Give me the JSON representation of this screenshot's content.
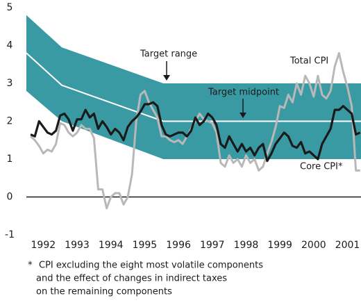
{
  "chart_data": {
    "type": "line",
    "ylim": [
      -1,
      5
    ],
    "yticks": [
      -1,
      0,
      1,
      2,
      3,
      4,
      5
    ],
    "xlim": [
      1991.5,
      2001.4
    ],
    "xticks": [
      1992,
      1993,
      1994,
      1995,
      1996,
      1997,
      1998,
      1999,
      2000,
      2001
    ],
    "grid": false,
    "zero_line": true,
    "target_range": {
      "name": "Target range",
      "color": "#3a9aa4",
      "x": [
        1991.5,
        1992.55,
        1995.55,
        2001.4
      ],
      "upper": [
        4.8,
        3.95,
        3,
        3
      ],
      "lower": [
        2.8,
        2,
        1,
        1
      ]
    },
    "target_midpoint": {
      "name": "Target midpoint",
      "color": "#ffffff",
      "values": [
        3.8,
        2.95,
        2,
        2
      ]
    },
    "x": [
      1991.625,
      1991.75,
      1991.875,
      1992,
      1992.125,
      1992.25,
      1992.375,
      1992.5,
      1992.625,
      1992.75,
      1992.875,
      1993,
      1993.125,
      1993.25,
      1993.375,
      1993.5,
      1993.625,
      1993.75,
      1993.875,
      1994,
      1994.125,
      1994.25,
      1994.375,
      1994.5,
      1994.625,
      1994.75,
      1994.875,
      1995,
      1995.125,
      1995.25,
      1995.375,
      1995.5,
      1995.625,
      1995.75,
      1995.875,
      1996,
      1996.125,
      1996.25,
      1996.375,
      1996.5,
      1996.625,
      1996.75,
      1996.875,
      1997,
      1997.125,
      1997.25,
      1997.375,
      1997.5,
      1997.625,
      1997.75,
      1997.875,
      1998,
      1998.125,
      1998.25,
      1998.375,
      1998.5,
      1998.625,
      1998.75,
      1998.875,
      1999,
      1999.125,
      1999.25,
      1999.375,
      1999.5,
      1999.625,
      1999.75,
      1999.875,
      2000,
      2000.125,
      2000.25,
      2000.375,
      2000.5,
      2000.625,
      2000.75,
      2000.875,
      2001,
      2001.125,
      2001.25,
      2001.375
    ],
    "series": [
      {
        "name": "Total CPI",
        "color": "#b8b8b8",
        "values": [
          1.6,
          1.5,
          1.35,
          1.15,
          1.25,
          1.2,
          1.4,
          1.95,
          1.9,
          1.7,
          1.6,
          1.7,
          1.9,
          1.8,
          1.8,
          1.55,
          0.2,
          0.2,
          -0.3,
          0,
          0.1,
          0.1,
          -0.2,
          0,
          0.6,
          2,
          2.7,
          2.8,
          2.5,
          2.3,
          2.1,
          1.6,
          1.6,
          1.5,
          1.45,
          1.5,
          1.4,
          1.6,
          1.8,
          2,
          2.2,
          2.05,
          2,
          1.95,
          1.7,
          0.9,
          0.8,
          1.1,
          0.9,
          1,
          0.8,
          1.1,
          0.9,
          1,
          0.7,
          0.8,
          1.15,
          1.45,
          1.85,
          2.4,
          2.35,
          2.7,
          2.5,
          3,
          2.7,
          3.2,
          3,
          2.65,
          3.2,
          2.7,
          2.6,
          2.8,
          3.45,
          3.8,
          3.3,
          2.9,
          2.4,
          0.7,
          0.7
        ]
      },
      {
        "name": "Core CPI*",
        "color": "#1a1a1a",
        "values": [
          1.65,
          1.6,
          2,
          1.85,
          1.7,
          1.65,
          1.75,
          2.15,
          2.2,
          2.05,
          1.75,
          2.05,
          2.05,
          2.3,
          2.1,
          2.2,
          1.8,
          2,
          1.85,
          1.65,
          1.8,
          1.7,
          1.5,
          1.85,
          2,
          2.1,
          2.25,
          2.45,
          2.45,
          2.5,
          2.4,
          1.9,
          1.65,
          1.6,
          1.65,
          1.7,
          1.7,
          1.6,
          1.75,
          2.1,
          1.9,
          2,
          2.2,
          2.1,
          1.9,
          1.4,
          1.3,
          1.6,
          1.4,
          1.2,
          1.4,
          1.2,
          1.3,
          1.1,
          1.3,
          1.4,
          0.95,
          1.15,
          1.4,
          1.55,
          1.7,
          1.6,
          1.35,
          1.3,
          1.45,
          1.15,
          1.2,
          1.1,
          1,
          1.4,
          1.6,
          1.8,
          2.3,
          2.3,
          2.4,
          2.3,
          2.2,
          1.65,
          1.7
        ]
      }
    ],
    "footnote": {
      "marker": "*",
      "lines": [
        "CPI excluding the eight most volatile components",
        "and the effect of changes in indirect taxes",
        "on the remaining components"
      ]
    }
  }
}
